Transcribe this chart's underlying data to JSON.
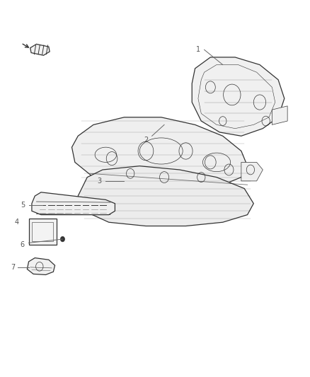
{
  "bg_color": "#ffffff",
  "line_color": "#333333",
  "label_color": "#555555",
  "fig_width": 4.38,
  "fig_height": 5.33,
  "dpi": 100
}
